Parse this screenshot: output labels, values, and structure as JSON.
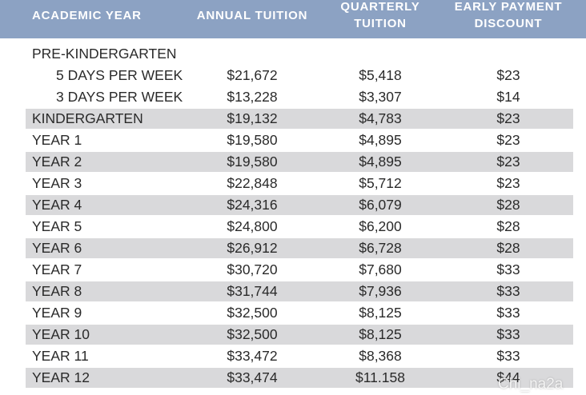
{
  "header": {
    "academic_year": "ACADEMIC YEAR",
    "annual_tuition": "ANNUAL TUITION",
    "quarterly_line1": "QUARTERLY",
    "quarterly_line2": "TUITION",
    "discount_line1": "EARLY PAYMENT",
    "discount_line2": "DISCOUNT"
  },
  "rows": [
    {
      "label": "PRE-KINDERGARTEN",
      "annual": "",
      "quarterly": "",
      "discount": ""
    },
    {
      "label": "5 DAYS PER WEEK",
      "annual": "$21,672",
      "quarterly": "$5,418",
      "discount": "$23"
    },
    {
      "label": "3 DAYS PER WEEK",
      "annual": "$13,228",
      "quarterly": "$3,307",
      "discount": "$14"
    },
    {
      "label": "KINDERGARTEN",
      "annual": "$19,132",
      "quarterly": "$4,783",
      "discount": "$23"
    },
    {
      "label": "YEAR 1",
      "annual": "$19,580",
      "quarterly": "$4,895",
      "discount": "$23"
    },
    {
      "label": "YEAR 2",
      "annual": "$19,580",
      "quarterly": "$4,895",
      "discount": "$23"
    },
    {
      "label": "YEAR 3",
      "annual": "$22,848",
      "quarterly": "$5,712",
      "discount": "$23"
    },
    {
      "label": "YEAR 4",
      "annual": "$24,316",
      "quarterly": "$6,079",
      "discount": "$28"
    },
    {
      "label": "YEAR 5",
      "annual": "$24,800",
      "quarterly": "$6,200",
      "discount": "$28"
    },
    {
      "label": "YEAR 6",
      "annual": "$26,912",
      "quarterly": "$6,728",
      "discount": "$28"
    },
    {
      "label": "YEAR 7",
      "annual": "$30,720",
      "quarterly": "$7,680",
      "discount": "$33"
    },
    {
      "label": "YEAR 8",
      "annual": "$31,744",
      "quarterly": "$7,936",
      "discount": "$33"
    },
    {
      "label": "YEAR 9",
      "annual": "$32,500",
      "quarterly": "$8,125",
      "discount": "$33"
    },
    {
      "label": "YEAR 10",
      "annual": "$32,500",
      "quarterly": "$8,125",
      "discount": "$33"
    },
    {
      "label": "YEAR 11",
      "annual": "$33,472",
      "quarterly": "$8,368",
      "discount": "$33"
    },
    {
      "label": "YEAR 12",
      "annual": "$33,474",
      "quarterly": "$11.158",
      "discount": "$44"
    }
  ],
  "watermark": "Chi_na2a",
  "colors": {
    "header_bg": "#8ca2c3",
    "shade": "#d9d9db",
    "text": "#2a2a2a"
  }
}
